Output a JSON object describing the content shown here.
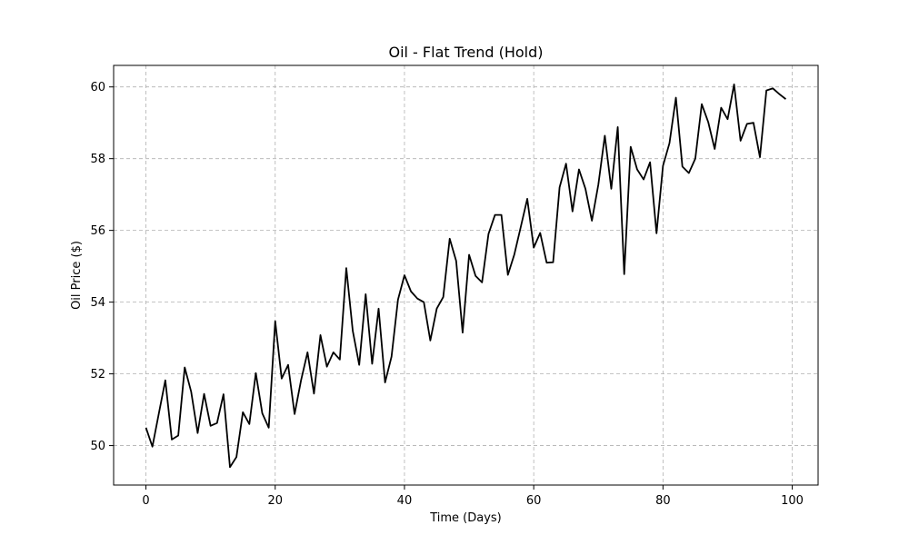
{
  "chart_data": {
    "type": "line",
    "title": "Oil - Flat Trend (Hold)",
    "xlabel": "Time (Days)",
    "ylabel": "Oil Price ($)",
    "xlim": [
      -5,
      104
    ],
    "ylim": [
      48.9,
      60.6
    ],
    "xticks": [
      0,
      20,
      40,
      60,
      80,
      100
    ],
    "yticks": [
      50,
      52,
      54,
      56,
      58,
      60
    ],
    "grid": true,
    "line_color": "#000000",
    "grid_color": "#b0b0b0",
    "series": [
      {
        "x": [
          0,
          1,
          2,
          3,
          4,
          5,
          6,
          7,
          8,
          9,
          10,
          11,
          12,
          13,
          14,
          15,
          16,
          17,
          18,
          19,
          20,
          21,
          22,
          23,
          24,
          25,
          26,
          27,
          28,
          29,
          30,
          31,
          32,
          33,
          34,
          35,
          36,
          37,
          38,
          39,
          40,
          41,
          42,
          43,
          44,
          45,
          46,
          47,
          48,
          49,
          50,
          51,
          52,
          53,
          54,
          55,
          56,
          57,
          58,
          59,
          60,
          61,
          62,
          63,
          64,
          65,
          66,
          67,
          68,
          69,
          70,
          71,
          72,
          73,
          74,
          75,
          76,
          77,
          78,
          79,
          80,
          81,
          82,
          83,
          84,
          85,
          86,
          87,
          88,
          89,
          90,
          91,
          92,
          93,
          94,
          95,
          96,
          97,
          98,
          99
        ],
        "values": [
          50.5,
          49.97,
          50.9,
          51.82,
          50.17,
          50.28,
          52.18,
          51.5,
          50.35,
          51.44,
          50.55,
          50.63,
          51.43,
          49.4,
          49.68,
          50.93,
          50.6,
          52.02,
          50.9,
          50.5,
          53.47,
          51.87,
          52.25,
          50.88,
          51.82,
          52.6,
          51.45,
          53.08,
          52.2,
          52.6,
          52.4,
          54.95,
          53.2,
          52.25,
          54.22,
          52.28,
          53.82,
          51.76,
          52.48,
          54.07,
          54.75,
          54.3,
          54.1,
          54.0,
          52.93,
          53.82,
          54.14,
          55.77,
          55.15,
          53.15,
          55.32,
          54.73,
          54.55,
          55.9,
          56.43,
          56.43,
          54.76,
          55.33,
          56.1,
          56.88,
          55.52,
          55.93,
          55.1,
          55.11,
          57.2,
          57.86,
          56.53,
          57.7,
          57.16,
          56.27,
          57.28,
          58.64,
          57.16,
          58.88,
          54.78,
          58.33,
          57.7,
          57.42,
          57.9,
          55.92,
          57.8,
          58.43,
          59.7,
          57.78,
          57.6,
          58.0,
          59.52,
          59.02,
          58.27,
          59.42,
          59.1,
          60.07,
          58.5,
          58.97,
          59.0,
          58.04,
          59.9,
          59.96,
          59.8,
          59.66
        ]
      }
    ]
  }
}
